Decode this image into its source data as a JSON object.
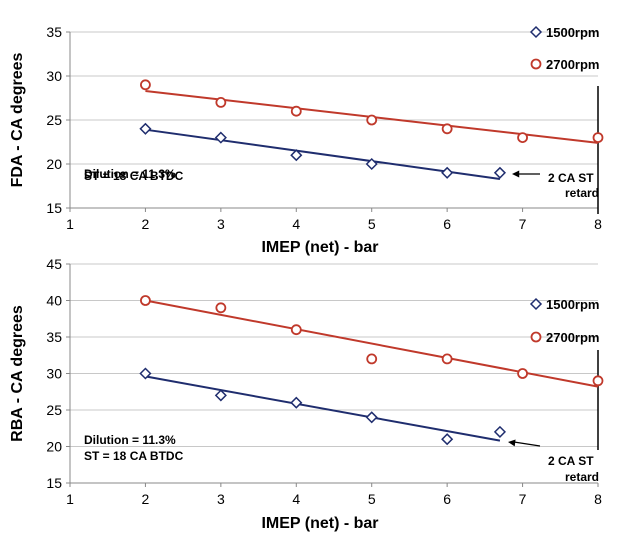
{
  "colors": {
    "series_1500": "#1f2d6e",
    "series_2700": "#c0392b",
    "grid": "#c8c8c8",
    "axis": "#888888"
  },
  "chart_data": [
    {
      "id": "top",
      "type": "scatter",
      "title": "",
      "xlabel": "IMEP (net)  -  bar",
      "ylabel": "FDA  -  CA degrees",
      "xlim": [
        1,
        8
      ],
      "ylim": [
        15,
        35
      ],
      "x_ticks": [
        1,
        2,
        3,
        4,
        5,
        6,
        7,
        8
      ],
      "y_ticks": [
        15,
        20,
        25,
        30,
        35
      ],
      "grid": "horizontal",
      "legend_position": "right",
      "series": [
        {
          "name": "1500rpm",
          "marker": "diamond",
          "x": [
            2,
            3,
            4,
            5,
            6,
            6.7
          ],
          "y": [
            24,
            23,
            21,
            20,
            19,
            19
          ],
          "trend": {
            "x": [
              2,
              6.7
            ],
            "y": [
              23.9,
              18.3
            ]
          }
        },
        {
          "name": "2700rpm",
          "marker": "circle",
          "x": [
            2,
            3,
            4,
            5,
            6,
            7,
            8
          ],
          "y": [
            29,
            27,
            26,
            25,
            24,
            23,
            23
          ],
          "trend": {
            "x": [
              2,
              8
            ],
            "y": [
              28.3,
              22.4
            ]
          }
        }
      ],
      "annotations": {
        "conditions": [
          "Dilution = 11.3%",
          "ST = 18 CA BTDC"
        ],
        "retard": [
          "2 CA ST",
          "retard"
        ]
      }
    },
    {
      "id": "bottom",
      "type": "scatter",
      "title": "",
      "xlabel": "IMEP (net)  -  bar",
      "ylabel": "RBA  -  CA degrees",
      "xlim": [
        1,
        8
      ],
      "ylim": [
        15,
        45
      ],
      "x_ticks": [
        1,
        2,
        3,
        4,
        5,
        6,
        7,
        8
      ],
      "y_ticks": [
        15,
        20,
        25,
        30,
        35,
        40,
        45
      ],
      "grid": "horizontal",
      "legend_position": "right",
      "series": [
        {
          "name": "1500rpm",
          "marker": "diamond",
          "x": [
            2,
            3,
            4,
            5,
            6,
            6.7
          ],
          "y": [
            30,
            27,
            26,
            24,
            21,
            22
          ],
          "trend": {
            "x": [
              2,
              6.7
            ],
            "y": [
              29.6,
              20.8
            ]
          }
        },
        {
          "name": "2700rpm",
          "marker": "circle",
          "x": [
            2,
            3,
            4,
            5,
            6,
            7,
            8
          ],
          "y": [
            40,
            39,
            36,
            32,
            32,
            30,
            29
          ],
          "trend": {
            "x": [
              2,
              8
            ],
            "y": [
              40.0,
              28.2
            ]
          }
        }
      ],
      "annotations": {
        "conditions": [
          "Dilution = 11.3%",
          "ST = 18 CA BTDC"
        ],
        "retard": [
          "2 CA ST",
          "retard"
        ]
      }
    }
  ]
}
